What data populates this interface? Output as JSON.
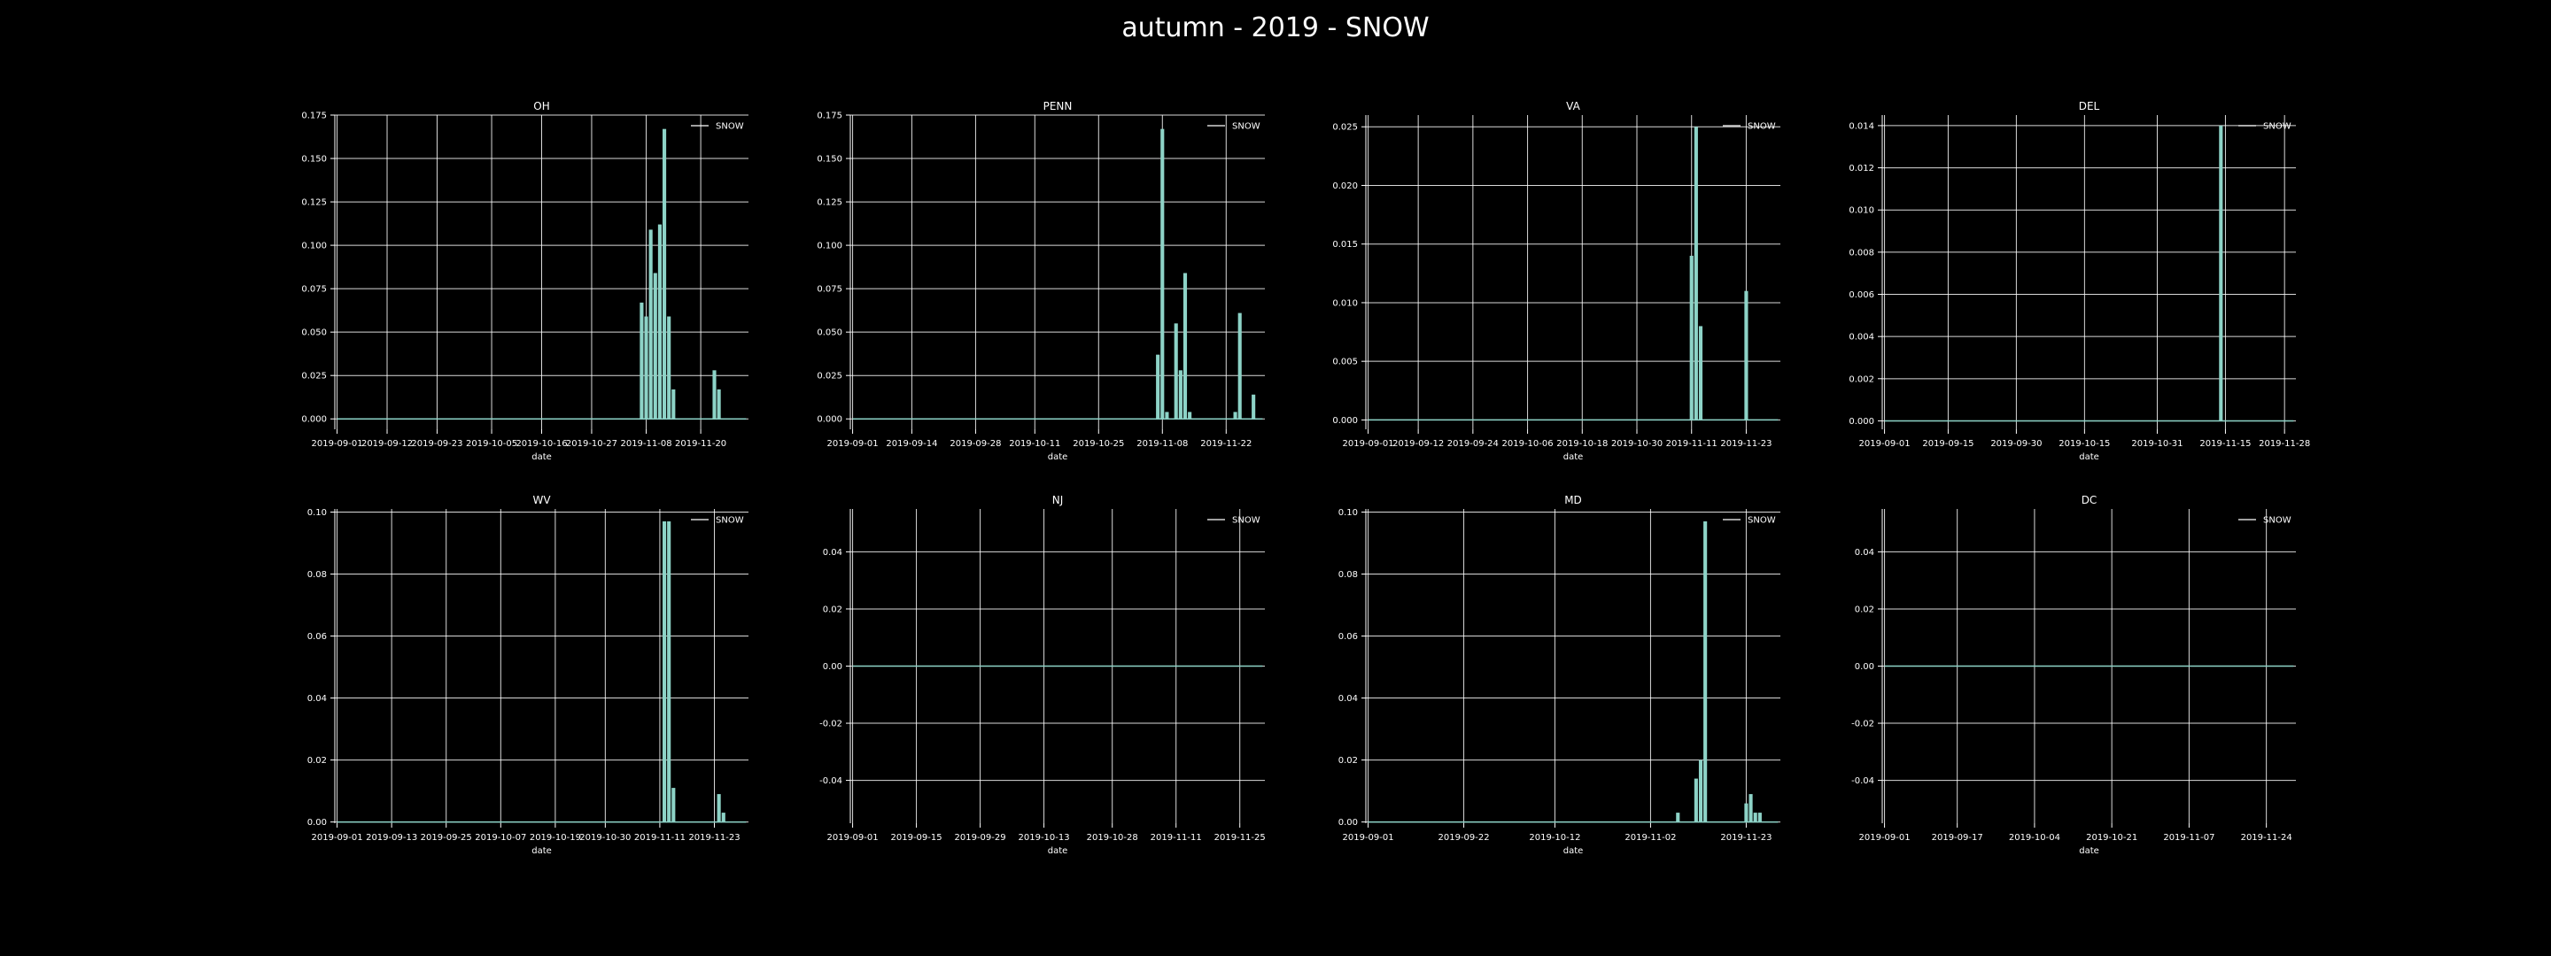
{
  "figure": {
    "title": "autumn - 2019 - SNOW",
    "background": "#000000",
    "bar_color": "#8dd3c7",
    "grid_color": "#ffffff"
  },
  "chart_data": [
    {
      "type": "bar",
      "title": "OH",
      "xlabel": "date",
      "ylabel": "",
      "legend": [
        "SNOW"
      ],
      "legend_loc": "upper right",
      "grid": true,
      "x_start": "2019-09-01",
      "x_end": "2019-11-30",
      "xticks": [
        "2019-09-01",
        "2019-09-12",
        "2019-09-23",
        "2019-10-05",
        "2019-10-16",
        "2019-10-27",
        "2019-11-08",
        "2019-11-20"
      ],
      "ylim": [
        -0.006,
        0.175
      ],
      "yticks": [
        0.0,
        0.025,
        0.05,
        0.075,
        0.1,
        0.125,
        0.15,
        0.175
      ],
      "ytick_labels": [
        "0.000",
        "0.025",
        "0.050",
        "0.075",
        "0.100",
        "0.125",
        "0.150",
        "0.175"
      ],
      "series": [
        {
          "name": "SNOW",
          "points": [
            [
              "2019-11-07",
              0.067
            ],
            [
              "2019-11-08",
              0.059
            ],
            [
              "2019-11-09",
              0.109
            ],
            [
              "2019-11-10",
              0.084
            ],
            [
              "2019-11-11",
              0.112
            ],
            [
              "2019-11-12",
              0.167
            ],
            [
              "2019-11-13",
              0.059
            ],
            [
              "2019-11-14",
              0.017
            ],
            [
              "2019-11-23",
              0.028
            ],
            [
              "2019-11-24",
              0.017
            ]
          ]
        }
      ]
    },
    {
      "type": "bar",
      "title": "PENN",
      "xlabel": "date",
      "ylabel": "",
      "legend": [
        "SNOW"
      ],
      "legend_loc": "upper right",
      "grid": true,
      "x_start": "2019-09-01",
      "x_end": "2019-11-30",
      "xticks": [
        "2019-09-01",
        "2019-09-14",
        "2019-09-28",
        "2019-10-11",
        "2019-10-25",
        "2019-11-08",
        "2019-11-22"
      ],
      "ylim": [
        -0.006,
        0.175
      ],
      "yticks": [
        0.0,
        0.025,
        0.05,
        0.075,
        0.1,
        0.125,
        0.15,
        0.175
      ],
      "ytick_labels": [
        "0.000",
        "0.025",
        "0.050",
        "0.075",
        "0.100",
        "0.125",
        "0.150",
        "0.175"
      ],
      "series": [
        {
          "name": "SNOW",
          "points": [
            [
              "2019-11-07",
              0.037
            ],
            [
              "2019-11-08",
              0.167
            ],
            [
              "2019-11-09",
              0.004
            ],
            [
              "2019-11-11",
              0.055
            ],
            [
              "2019-11-12",
              0.028
            ],
            [
              "2019-11-13",
              0.084
            ],
            [
              "2019-11-14",
              0.004
            ],
            [
              "2019-11-24",
              0.004
            ],
            [
              "2019-11-25",
              0.061
            ],
            [
              "2019-11-28",
              0.014
            ]
          ]
        }
      ]
    },
    {
      "type": "bar",
      "title": "VA",
      "xlabel": "date",
      "ylabel": "",
      "legend": [
        "SNOW"
      ],
      "legend_loc": "upper right",
      "grid": true,
      "x_start": "2019-09-01",
      "x_end": "2019-11-30",
      "xticks": [
        "2019-09-01",
        "2019-09-12",
        "2019-09-24",
        "2019-10-06",
        "2019-10-18",
        "2019-10-30",
        "2019-11-11",
        "2019-11-23"
      ],
      "ylim": [
        -0.0008,
        0.026
      ],
      "yticks": [
        0.0,
        0.005,
        0.01,
        0.015,
        0.02,
        0.025
      ],
      "ytick_labels": [
        "0.000",
        "0.005",
        "0.010",
        "0.015",
        "0.020",
        "0.025"
      ],
      "series": [
        {
          "name": "SNOW",
          "points": [
            [
              "2019-11-11",
              0.014
            ],
            [
              "2019-11-12",
              0.025
            ],
            [
              "2019-11-13",
              0.008
            ],
            [
              "2019-11-23",
              0.011
            ]
          ]
        }
      ]
    },
    {
      "type": "bar",
      "title": "DEL",
      "xlabel": "date",
      "ylabel": "",
      "legend": [
        "SNOW"
      ],
      "legend_loc": "upper right",
      "grid": true,
      "x_start": "2019-09-01",
      "x_end": "2019-11-30",
      "xticks": [
        "2019-09-01",
        "2019-09-15",
        "2019-09-30",
        "2019-10-15",
        "2019-10-31",
        "2019-11-15",
        "2019-11-28"
      ],
      "ylim": [
        -0.0004,
        0.0145
      ],
      "yticks": [
        0.0,
        0.002,
        0.004,
        0.006,
        0.008,
        0.01,
        0.012,
        0.014
      ],
      "ytick_labels": [
        "0.000",
        "0.002",
        "0.004",
        "0.006",
        "0.008",
        "0.010",
        "0.012",
        "0.014"
      ],
      "series": [
        {
          "name": "SNOW",
          "points": [
            [
              "2019-11-14",
              0.014
            ]
          ]
        }
      ]
    },
    {
      "type": "bar",
      "title": "WV",
      "xlabel": "date",
      "ylabel": "",
      "legend": [
        "SNOW"
      ],
      "legend_loc": "upper right",
      "grid": true,
      "x_start": "2019-09-01",
      "x_end": "2019-11-30",
      "xticks": [
        "2019-09-01",
        "2019-09-13",
        "2019-09-25",
        "2019-10-07",
        "2019-10-19",
        "2019-10-30",
        "2019-11-11",
        "2019-11-23"
      ],
      "ylim": [
        -0.0004,
        0.101
      ],
      "yticks": [
        0.0,
        0.02,
        0.04,
        0.06,
        0.08,
        0.1
      ],
      "ytick_labels": [
        "0.00",
        "0.02",
        "0.04",
        "0.06",
        "0.08",
        "0.10"
      ],
      "series": [
        {
          "name": "SNOW",
          "points": [
            [
              "2019-11-12",
              0.097
            ],
            [
              "2019-11-13",
              0.097
            ],
            [
              "2019-11-14",
              0.011
            ],
            [
              "2019-11-24",
              0.009
            ],
            [
              "2019-11-25",
              0.003
            ]
          ]
        }
      ]
    },
    {
      "type": "bar",
      "title": "NJ",
      "xlabel": "date",
      "ylabel": "",
      "legend": [
        "SNOW"
      ],
      "legend_loc": "upper right",
      "grid": true,
      "x_start": "2019-09-01",
      "x_end": "2019-11-30",
      "xticks": [
        "2019-09-01",
        "2019-09-15",
        "2019-09-29",
        "2019-10-13",
        "2019-10-28",
        "2019-11-11",
        "2019-11-25"
      ],
      "ylim": [
        -0.055,
        0.055
      ],
      "yticks": [
        -0.04,
        -0.02,
        0.0,
        0.02,
        0.04
      ],
      "ytick_labels": [
        "-0.04",
        "-0.02",
        "0.00",
        "0.02",
        "0.04"
      ],
      "series": [
        {
          "name": "SNOW",
          "points": []
        }
      ]
    },
    {
      "type": "bar",
      "title": "MD",
      "xlabel": "date",
      "ylabel": "",
      "legend": [
        "SNOW"
      ],
      "legend_loc": "upper right",
      "grid": true,
      "x_start": "2019-09-01",
      "x_end": "2019-11-30",
      "xticks": [
        "2019-09-01",
        "2019-09-22",
        "2019-10-12",
        "2019-11-02",
        "2019-11-23"
      ],
      "ylim": [
        -0.0004,
        0.101
      ],
      "yticks": [
        0.0,
        0.02,
        0.04,
        0.06,
        0.08,
        0.1
      ],
      "ytick_labels": [
        "0.00",
        "0.02",
        "0.04",
        "0.06",
        "0.08",
        "0.10"
      ],
      "series": [
        {
          "name": "SNOW",
          "points": [
            [
              "2019-11-08",
              0.003
            ],
            [
              "2019-11-12",
              0.014
            ],
            [
              "2019-11-13",
              0.02
            ],
            [
              "2019-11-14",
              0.097
            ],
            [
              "2019-11-23",
              0.006
            ],
            [
              "2019-11-24",
              0.009
            ],
            [
              "2019-11-25",
              0.003
            ],
            [
              "2019-11-26",
              0.003
            ]
          ]
        }
      ]
    },
    {
      "type": "bar",
      "title": "DC",
      "xlabel": "date",
      "ylabel": "",
      "legend": [
        "SNOW"
      ],
      "legend_loc": "upper right",
      "grid": true,
      "x_start": "2019-09-01",
      "x_end": "2019-11-30",
      "xticks": [
        "2019-09-01",
        "2019-09-17",
        "2019-10-04",
        "2019-10-21",
        "2019-11-07",
        "2019-11-24"
      ],
      "ylim": [
        -0.055,
        0.055
      ],
      "yticks": [
        -0.04,
        -0.02,
        0.0,
        0.02,
        0.04
      ],
      "ytick_labels": [
        "-0.04",
        "-0.02",
        "0.00",
        "0.02",
        "0.04"
      ],
      "series": [
        {
          "name": "SNOW",
          "points": []
        }
      ]
    }
  ]
}
